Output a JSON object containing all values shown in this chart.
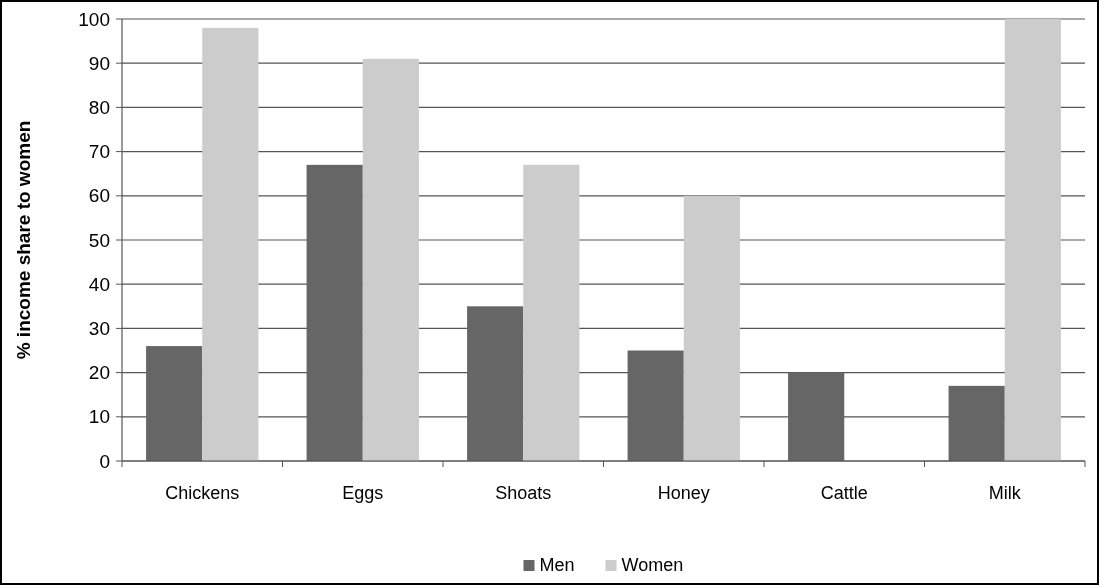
{
  "chart_data": {
    "type": "bar",
    "ylabel": "% income share to women",
    "categories": [
      "Chickens",
      "Eggs",
      "Shoats",
      "Honey",
      "Cattle",
      "Milk"
    ],
    "series": [
      {
        "name": "Men",
        "color": "#666666",
        "values": [
          26,
          67,
          35,
          25,
          20,
          17
        ]
      },
      {
        "name": "Women",
        "color": "#cccccc",
        "values": [
          98,
          91,
          67,
          60,
          0,
          100
        ]
      }
    ],
    "ylim": [
      0,
      100
    ],
    "yticks": [
      0,
      10,
      20,
      30,
      40,
      50,
      60,
      70,
      80,
      90,
      100
    ],
    "grid": "y",
    "legend": "bottom"
  }
}
